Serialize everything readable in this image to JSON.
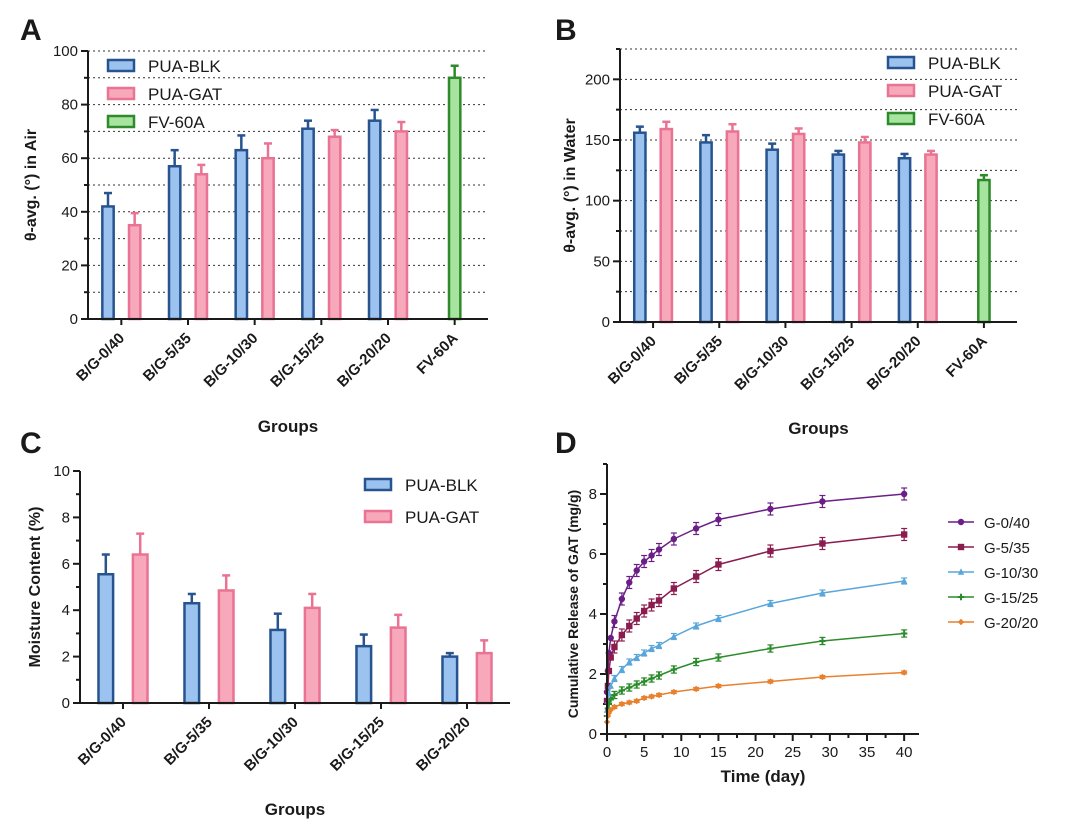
{
  "colors": {
    "PUA-BLK": {
      "fill": "#9cc3ef",
      "stroke": "#27548f"
    },
    "PUA-GAT": {
      "fill": "#f7a8bb",
      "stroke": "#e97392"
    },
    "FV-60A": {
      "fill": "#a7e49f",
      "stroke": "#2f8a2b"
    },
    "G-0/40": "#6b1f86",
    "G-5/35": "#8b1c4f",
    "G-10/30": "#5aa6db",
    "G-15/25": "#2c8c2c",
    "G-20/20": "#e8812f"
  },
  "chart_data": [
    {
      "panel": "A",
      "type": "bar",
      "xlabel": "Groups",
      "ylabel": "θ-avg. (°) in Air",
      "ylim": [
        0,
        100
      ],
      "yticks": [
        0,
        20,
        40,
        60,
        80,
        100
      ],
      "grid": true,
      "legend_position": "top-left",
      "categories": [
        "B/G-0/40",
        "B/G-5/35",
        "B/G-10/30",
        "B/G-15/25",
        "B/G-20/20",
        "FV-60A"
      ],
      "series": [
        {
          "name": "PUA-BLK",
          "values": [
            42,
            57,
            63,
            71,
            74,
            null
          ],
          "errors": [
            5,
            6,
            5.5,
            3,
            4,
            null
          ]
        },
        {
          "name": "PUA-GAT",
          "values": [
            35,
            54,
            60,
            68,
            70,
            null
          ],
          "errors": [
            4.5,
            3.5,
            5.5,
            2.5,
            3.5,
            null
          ]
        },
        {
          "name": "FV-60A",
          "values": [
            null,
            null,
            null,
            null,
            null,
            90
          ],
          "errors": [
            null,
            null,
            null,
            null,
            null,
            4.5
          ]
        }
      ]
    },
    {
      "panel": "B",
      "type": "bar",
      "xlabel": "Groups",
      "ylabel": "θ-avg. (°) in Water",
      "ylim": [
        0,
        225
      ],
      "yticks": [
        0,
        50,
        100,
        150,
        200
      ],
      "grid": true,
      "legend_position": "top-right",
      "categories": [
        "B/G-0/40",
        "B/G-5/35",
        "B/G-10/30",
        "B/G-15/25",
        "B/G-20/20",
        "FV-60A"
      ],
      "series": [
        {
          "name": "PUA-BLK",
          "values": [
            156,
            148,
            142,
            138,
            135,
            null
          ],
          "errors": [
            5,
            6,
            5,
            3,
            3.5,
            null
          ]
        },
        {
          "name": "PUA-GAT",
          "values": [
            159,
            157,
            155,
            148,
            138,
            null
          ],
          "errors": [
            6,
            6,
            4.5,
            4.5,
            3,
            null
          ]
        },
        {
          "name": "FV-60A",
          "values": [
            null,
            null,
            null,
            null,
            null,
            117
          ],
          "errors": [
            null,
            null,
            null,
            null,
            null,
            4
          ]
        }
      ]
    },
    {
      "panel": "C",
      "type": "bar",
      "xlabel": "Groups",
      "ylabel": "Moisture Content (%)",
      "ylim": [
        0,
        10
      ],
      "yticks": [
        0,
        2,
        4,
        6,
        8,
        10
      ],
      "grid": false,
      "legend_position": "top-right",
      "categories": [
        "B/G-0/40",
        "B/G-5/35",
        "B/G-10/30",
        "B/G-15/25",
        "B/G-20/20"
      ],
      "series": [
        {
          "name": "PUA-BLK",
          "values": [
            5.55,
            4.3,
            3.15,
            2.45,
            2.0
          ],
          "errors": [
            0.85,
            0.4,
            0.7,
            0.5,
            0.15
          ]
        },
        {
          "name": "PUA-GAT",
          "values": [
            6.4,
            4.85,
            4.1,
            3.25,
            2.15
          ],
          "errors": [
            0.9,
            0.65,
            0.6,
            0.55,
            0.55
          ]
        }
      ]
    },
    {
      "panel": "D",
      "type": "line",
      "xlabel": "Time (day)",
      "ylabel": "Cumulative Release of GAT (mg/g)",
      "xlim": [
        0,
        42
      ],
      "ylim": [
        0,
        9
      ],
      "xticks": [
        0,
        5,
        10,
        15,
        20,
        25,
        30,
        35,
        40
      ],
      "yticks": [
        0,
        2,
        4,
        6,
        8
      ],
      "grid": false,
      "legend_position": "right",
      "x": [
        0,
        0.125,
        0.25,
        0.5,
        1,
        2,
        3,
        4,
        5,
        6,
        7,
        9,
        12,
        15,
        22,
        29,
        40
      ],
      "series": [
        {
          "name": "G-0/40",
          "marker": "circle",
          "values": [
            1.4,
            2.1,
            2.7,
            3.2,
            3.75,
            4.5,
            5.05,
            5.45,
            5.75,
            5.95,
            6.15,
            6.5,
            6.85,
            7.15,
            7.5,
            7.75,
            8.0
          ],
          "error": 0.2
        },
        {
          "name": "G-5/35",
          "marker": "square",
          "values": [
            1.1,
            1.6,
            2.1,
            2.55,
            2.9,
            3.3,
            3.6,
            3.85,
            4.1,
            4.3,
            4.45,
            4.85,
            5.25,
            5.65,
            6.1,
            6.35,
            6.65
          ],
          "error": 0.2
        },
        {
          "name": "G-10/30",
          "marker": "triangle",
          "values": [
            0.8,
            1.1,
            1.35,
            1.6,
            1.85,
            2.15,
            2.4,
            2.55,
            2.7,
            2.85,
            2.95,
            3.25,
            3.6,
            3.85,
            4.35,
            4.7,
            5.1
          ],
          "error": 0.1
        },
        {
          "name": "G-15/25",
          "marker": "cross",
          "values": [
            0.6,
            0.85,
            1.0,
            1.15,
            1.3,
            1.45,
            1.55,
            1.65,
            1.75,
            1.85,
            1.95,
            2.15,
            2.4,
            2.55,
            2.85,
            3.1,
            3.35
          ],
          "error": 0.12
        },
        {
          "name": "G-20/20",
          "marker": "diamond",
          "values": [
            0.4,
            0.6,
            0.7,
            0.8,
            0.9,
            1.0,
            1.05,
            1.1,
            1.2,
            1.25,
            1.3,
            1.4,
            1.5,
            1.6,
            1.75,
            1.9,
            2.05
          ],
          "error": 0.05
        }
      ]
    }
  ]
}
